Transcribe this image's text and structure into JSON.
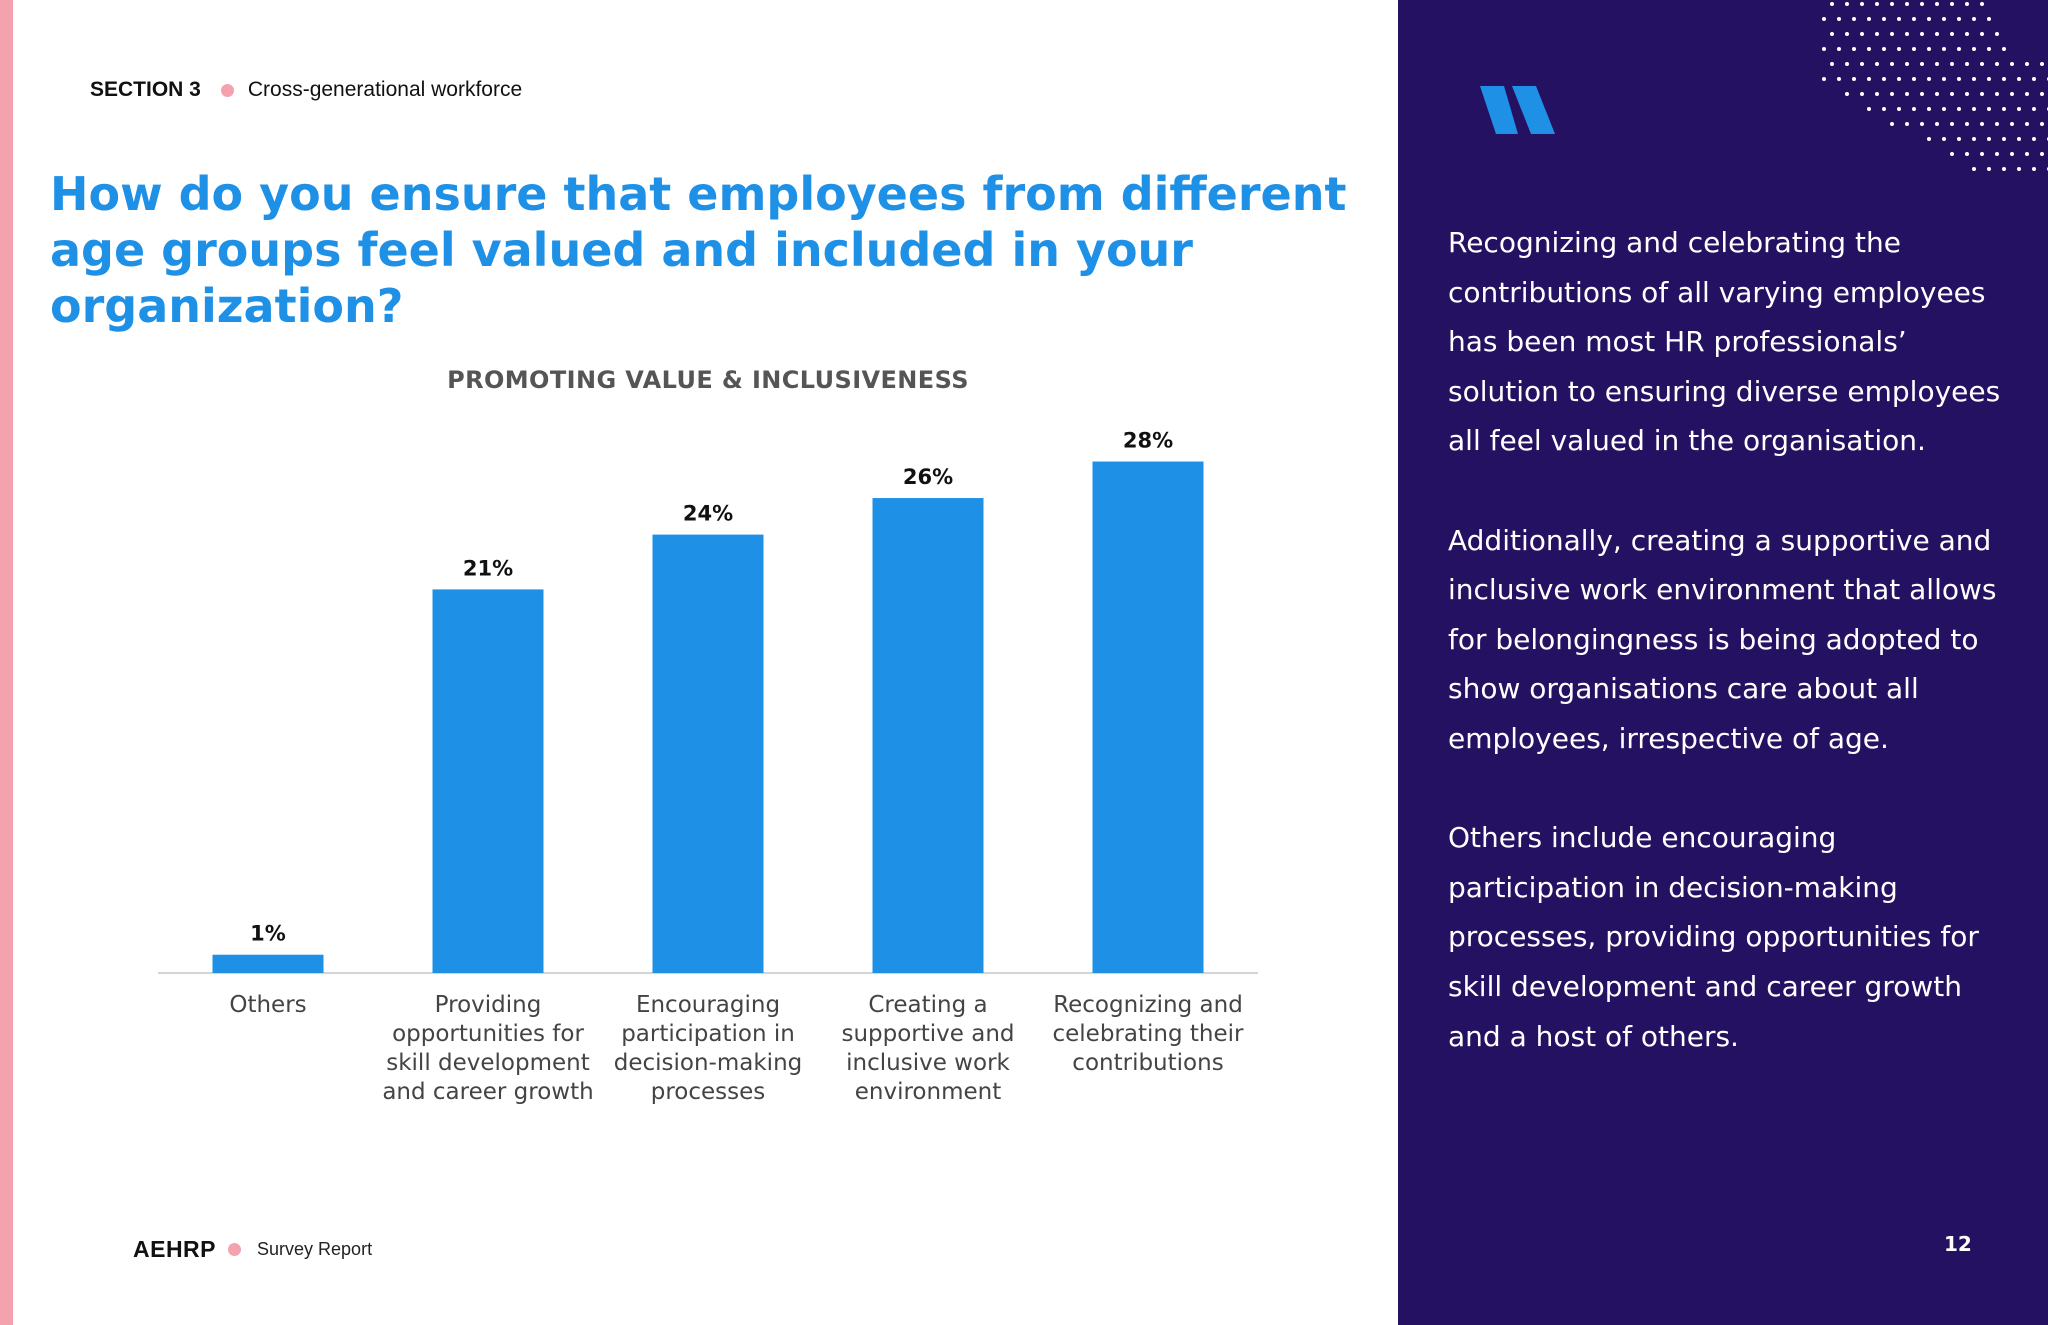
{
  "header": {
    "section_label": "SECTION 3",
    "section_title": "Cross-generational workforce"
  },
  "headline": "How do you ensure that employees from different age groups feel valued and included in your organization?",
  "chart_title": "PROMOTING VALUE & INCLUSIVENESS",
  "chart_data": {
    "type": "bar",
    "title": "PROMOTING VALUE & INCLUSIVENESS",
    "categories": [
      [
        "Others"
      ],
      [
        "Providing",
        "opportunities for",
        "skill development",
        "and career growth"
      ],
      [
        "Encouraging",
        "participation in",
        "decision-making",
        "processes"
      ],
      [
        "Creating a",
        "supportive and",
        "inclusive work",
        "environment"
      ],
      [
        "Recognizing and",
        "celebrating their",
        "contributions"
      ]
    ],
    "values": [
      1,
      21,
      24,
      26,
      28
    ],
    "value_labels": [
      "1%",
      "21%",
      "24%",
      "26%",
      "28%"
    ],
    "ylim": [
      0,
      30
    ],
    "grid": false,
    "bar_color": "#1e90e6"
  },
  "footer": {
    "brand": "AEHRP",
    "report": "Survey Report"
  },
  "side": {
    "paragraphs": [
      "Recognizing and celebrating the contributions of all varying employees has been most HR professionals’ solution to ensuring diverse employees all feel valued  in the organisation.",
      "Additionally, creating a supportive and inclusive work environment that allows for belongingness is being adopted to show organisations care about all employees, irrespective of age.",
      "Others include encouraging participation in decision-making processes, providing opportunities for skill development and career growth  and a host of others."
    ],
    "page_number": "12"
  },
  "colors": {
    "accent": "#1e90e6",
    "panel": "#251162",
    "pink": "#f4a2ad"
  }
}
